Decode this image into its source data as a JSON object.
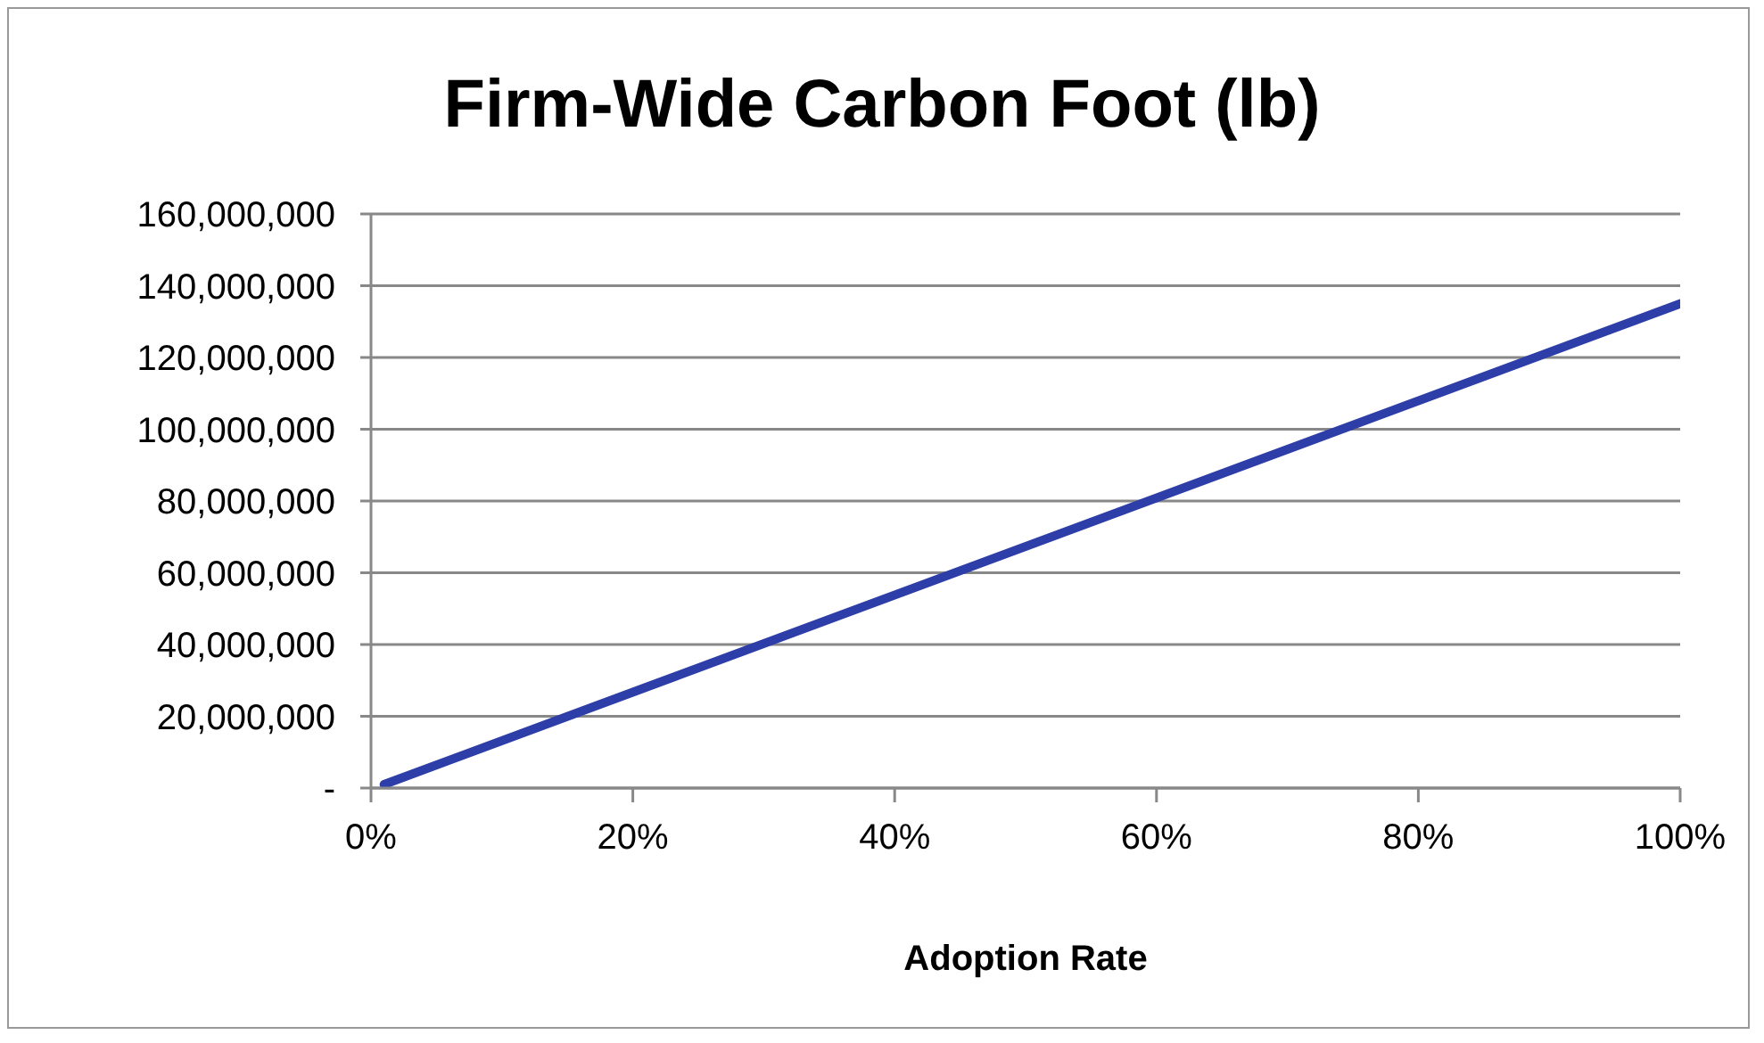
{
  "chart_data": {
    "type": "line",
    "title": "Firm-Wide Carbon Foot (lb)",
    "xlabel": "Adoption Rate",
    "x": [
      1,
      100
    ],
    "series": [
      {
        "color": "#2e3ea8",
        "values": [
          1000000,
          135000000
        ]
      }
    ],
    "xlim": [
      0,
      100
    ],
    "xticks": [
      {
        "value": 0,
        "label": "0%"
      },
      {
        "value": 20,
        "label": "20%"
      },
      {
        "value": 40,
        "label": "40%"
      },
      {
        "value": 60,
        "label": "60%"
      },
      {
        "value": 80,
        "label": "80%"
      },
      {
        "value": 100,
        "label": "100%"
      }
    ],
    "ylim": [
      0,
      160000000
    ],
    "yticks": [
      {
        "value": 0,
        "label": "-"
      },
      {
        "value": 20000000,
        "label": "20,000,000"
      },
      {
        "value": 40000000,
        "label": "40,000,000"
      },
      {
        "value": 60000000,
        "label": "60,000,000"
      },
      {
        "value": 80000000,
        "label": "80,000,000"
      },
      {
        "value": 100000000,
        "label": "100,000,000"
      },
      {
        "value": 120000000,
        "label": "120,000,000"
      },
      {
        "value": 140000000,
        "label": "140,000,000"
      },
      {
        "value": 160000000,
        "label": "160,000,000"
      }
    ],
    "grid": "y",
    "marker": "none",
    "line_style": "solid",
    "legend": false
  }
}
